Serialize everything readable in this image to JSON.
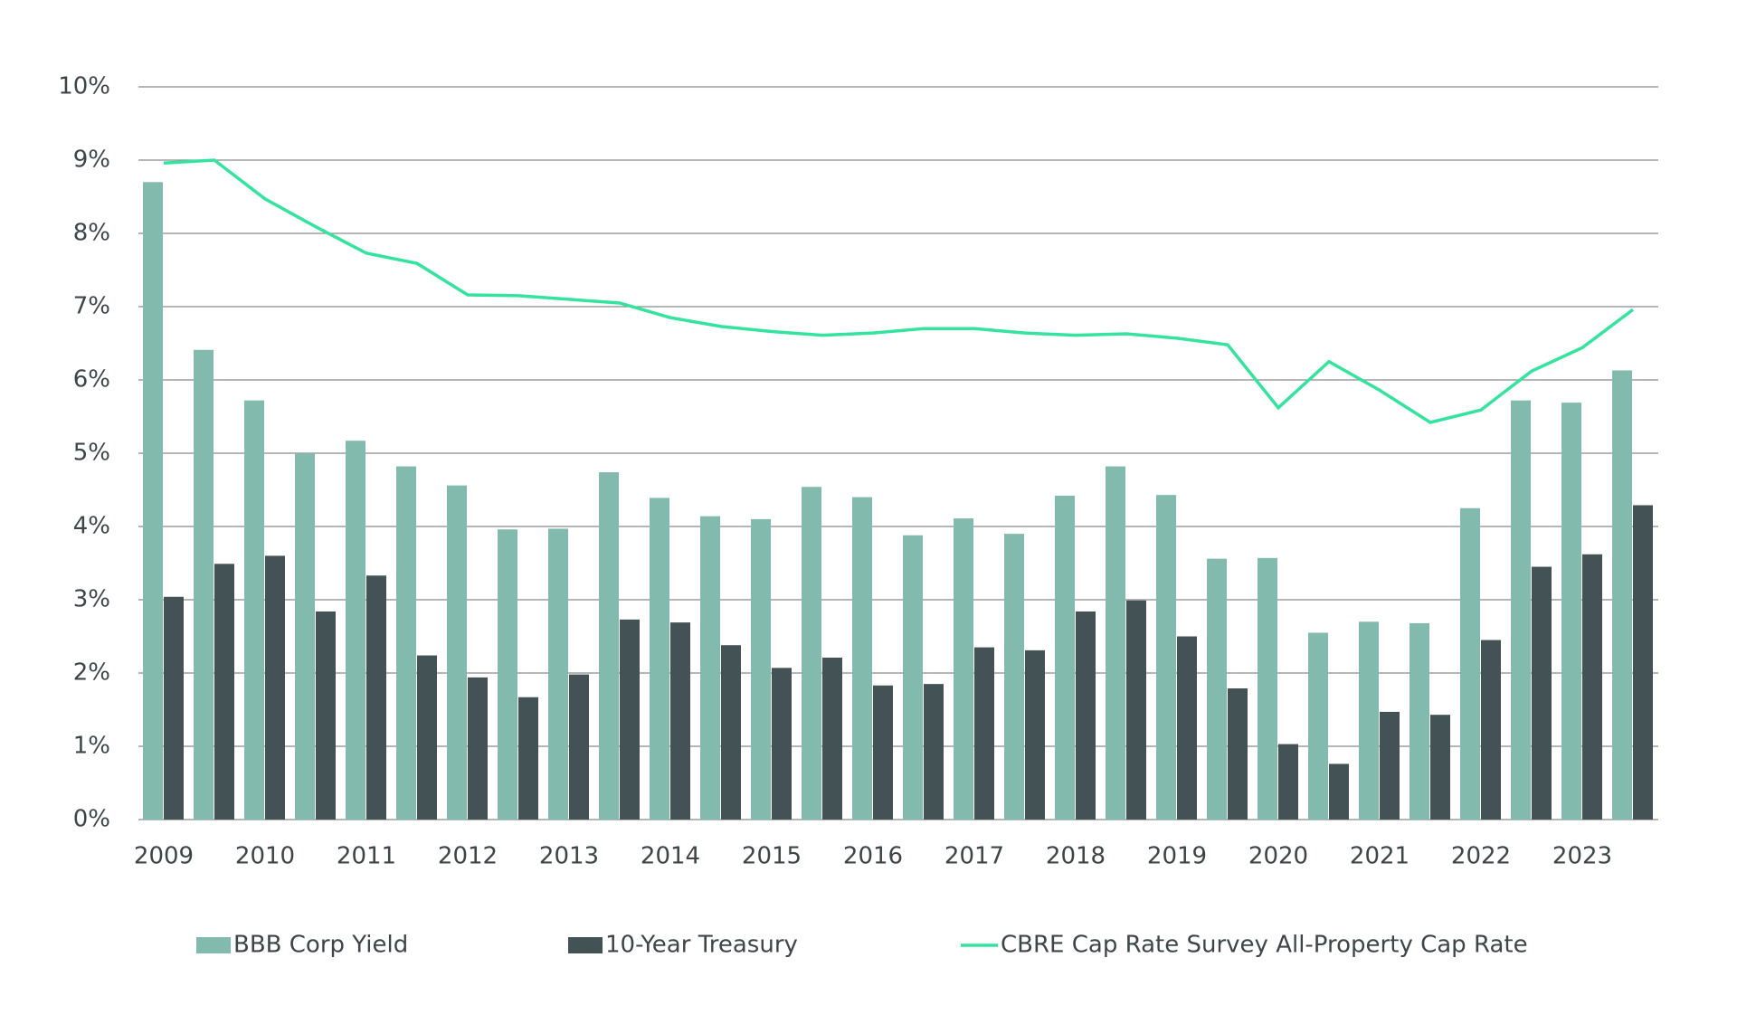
{
  "chart_data": {
    "type": "bar",
    "categories": [
      "2009",
      null,
      "2010",
      null,
      "2011",
      null,
      "2012",
      null,
      "2013",
      null,
      "2014",
      null,
      "2015",
      null,
      "2016",
      null,
      "2017",
      null,
      "2018",
      null,
      "2019",
      null,
      "2020",
      null,
      "2021",
      null,
      "2022",
      null,
      "2023",
      null
    ],
    "series": [
      {
        "name": "BBB Corp Yield",
        "type": "bar",
        "color": "#82bbad",
        "values": [
          8.7,
          6.41,
          5.72,
          5.0,
          5.17,
          4.82,
          4.56,
          3.96,
          3.97,
          4.74,
          4.39,
          4.14,
          4.1,
          4.54,
          4.4,
          3.88,
          4.11,
          3.9,
          4.42,
          4.82,
          4.43,
          3.56,
          3.57,
          2.55,
          2.7,
          2.68,
          4.25,
          5.72,
          5.69,
          6.13
        ]
      },
      {
        "name": "10-Year Treasury",
        "type": "bar",
        "color": "#435254",
        "values": [
          3.04,
          3.49,
          3.6,
          2.84,
          3.33,
          2.24,
          1.94,
          1.67,
          1.98,
          2.73,
          2.69,
          2.38,
          2.07,
          2.21,
          1.83,
          1.85,
          2.35,
          2.31,
          2.84,
          2.99,
          2.5,
          1.79,
          1.03,
          0.76,
          1.47,
          1.43,
          2.45,
          3.45,
          3.62,
          4.29
        ]
      },
      {
        "name": "CBRE Cap Rate Survey All-Property Cap Rate",
        "type": "line",
        "color": "#34e39e",
        "values": [
          8.96,
          9.0,
          8.47,
          8.09,
          7.73,
          7.59,
          7.16,
          7.15,
          7.1,
          7.05,
          6.85,
          6.73,
          6.66,
          6.61,
          6.64,
          6.7,
          6.7,
          6.64,
          6.61,
          6.63,
          6.57,
          6.48,
          5.62,
          6.25,
          5.86,
          5.42,
          5.59,
          6.12,
          6.44,
          6.96
        ]
      }
    ],
    "ylim": [
      0,
      10
    ],
    "yticks": [
      {
        "value": 0,
        "label": "0%"
      },
      {
        "value": 1,
        "label": "1%"
      },
      {
        "value": 2,
        "label": "2%"
      },
      {
        "value": 3,
        "label": "3%"
      },
      {
        "value": 4,
        "label": "4%"
      },
      {
        "value": 5,
        "label": "5%"
      },
      {
        "value": 6,
        "label": "6%"
      },
      {
        "value": 7,
        "label": "7%"
      },
      {
        "value": 8,
        "label": "8%"
      },
      {
        "value": 9,
        "label": "9%"
      },
      {
        "value": 10,
        "label": "10%"
      }
    ],
    "grid": true,
    "legend": "bottom"
  }
}
